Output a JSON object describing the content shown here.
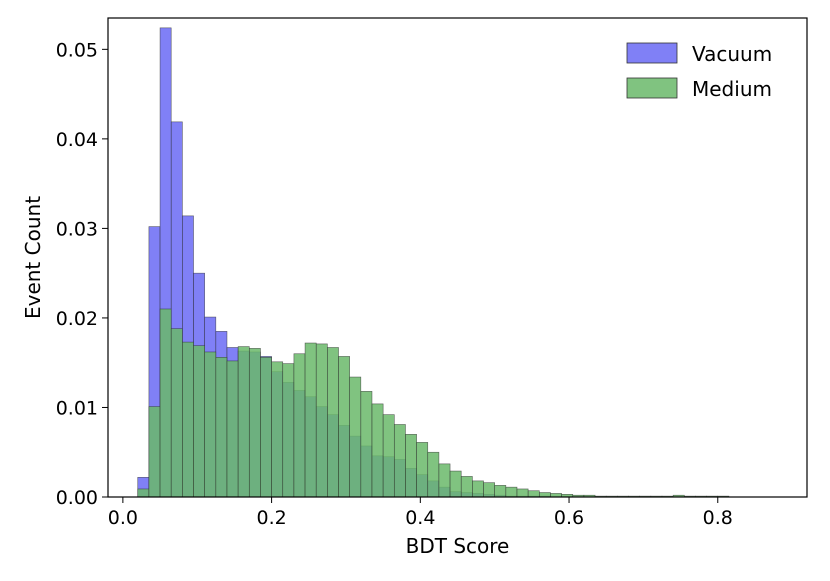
{
  "chart_data": {
    "type": "bar",
    "xlabel": "BDT Score",
    "ylabel": "Event Count",
    "xlim": [
      -0.02,
      0.92
    ],
    "ylim": [
      0,
      0.0535
    ],
    "bin_start": 0.02,
    "bin_width": 0.015,
    "x_ticks": [
      0.0,
      0.2,
      0.4,
      0.6,
      0.8
    ],
    "x_tick_labels": [
      "0.0",
      "0.2",
      "0.4",
      "0.6",
      "0.8"
    ],
    "y_ticks": [
      0.0,
      0.01,
      0.02,
      0.03,
      0.04,
      0.05
    ],
    "y_tick_labels": [
      "0.00",
      "0.01",
      "0.02",
      "0.03",
      "0.04",
      "0.05"
    ],
    "legend_position": "top-right",
    "series": [
      {
        "name": "Vacuum",
        "color": "#6a6af4",
        "values": [
          0.0022,
          0.0302,
          0.0524,
          0.0419,
          0.0314,
          0.025,
          0.0201,
          0.0185,
          0.0167,
          0.0163,
          0.0162,
          0.0157,
          0.014,
          0.0128,
          0.0119,
          0.0112,
          0.0101,
          0.0092,
          0.008,
          0.0068,
          0.0057,
          0.0046,
          0.0045,
          0.0042,
          0.0032,
          0.0025,
          0.0018,
          0.0011,
          0.0006,
          0.0005,
          0.0004,
          0.0003,
          0.0002,
          0.0001,
          0.0001,
          0.0001,
          0.0001,
          0.0,
          0.0,
          0.0,
          0.0,
          0.0,
          0.0,
          0.0,
          0.0,
          0.0,
          0.0,
          0.0,
          0.0,
          0.0,
          0.0,
          0.0,
          0.0,
          0.0,
          0.0,
          0.0,
          0.0,
          0.0
        ]
      },
      {
        "name": "Medium",
        "color": "#6ab86a",
        "values": [
          0.0009,
          0.0101,
          0.021,
          0.0188,
          0.0173,
          0.0169,
          0.0162,
          0.0156,
          0.0152,
          0.0168,
          0.0166,
          0.0156,
          0.0151,
          0.0149,
          0.016,
          0.0172,
          0.0171,
          0.0167,
          0.0157,
          0.0134,
          0.0118,
          0.0104,
          0.0092,
          0.0081,
          0.007,
          0.0061,
          0.005,
          0.0037,
          0.0029,
          0.0023,
          0.0018,
          0.0016,
          0.0013,
          0.0011,
          0.0009,
          0.0007,
          0.0005,
          0.0004,
          0.0003,
          0.0002,
          0.0002,
          0.0001,
          0.0001,
          0.0001,
          0.0001,
          0.0001,
          0.0001,
          0.0001,
          0.0002,
          0.0001,
          0.0001,
          0.0001,
          0.0001,
          0.0,
          0.0,
          0.0,
          0.0,
          0.0
        ]
      }
    ]
  }
}
